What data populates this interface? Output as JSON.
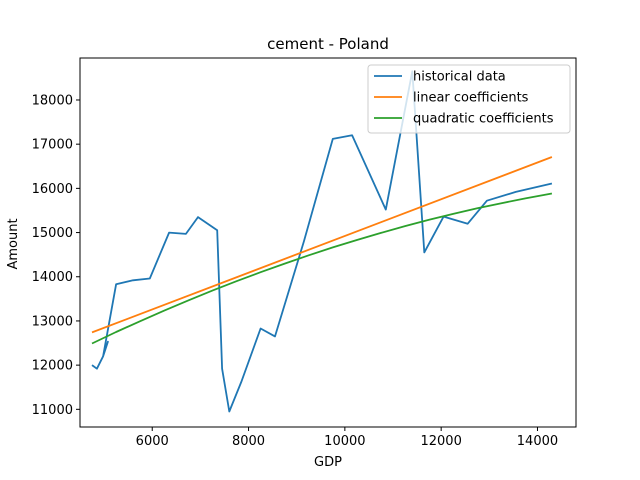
{
  "chart_data": {
    "type": "line",
    "title": "cement - Poland",
    "xlabel": "GDP",
    "ylabel": "Amount",
    "xlim": [
      4500,
      14800
    ],
    "ylim": [
      10600,
      18950
    ],
    "xticks": [
      6000,
      8000,
      10000,
      12000,
      14000
    ],
    "yticks": [
      11000,
      12000,
      13000,
      14000,
      15000,
      16000,
      17000,
      18000
    ],
    "grid": false,
    "legend_position": "top-right",
    "series": [
      {
        "name": "historical data",
        "color": "#1f77b4",
        "x": [
          4750,
          4850,
          4980,
          5080,
          4980,
          5250,
          5600,
          5950,
          6350,
          6700,
          6950,
          7350,
          7450,
          7600,
          7850,
          8250,
          8550,
          9150,
          9750,
          10150,
          10850,
          11400,
          11650,
          12050,
          12550,
          12950,
          13550,
          14300
        ],
        "y": [
          12000,
          11920,
          12200,
          12530,
          12200,
          13830,
          13920,
          13960,
          15000,
          14970,
          15350,
          15050,
          11920,
          10950,
          11620,
          12830,
          12650,
          14800,
          17120,
          17200,
          15520,
          18650,
          14550,
          15360,
          15200,
          15720,
          15920,
          16110
        ]
      },
      {
        "name": "linear coefficients",
        "color": "#ff7f0e",
        "x": [
          4750,
          14300
        ],
        "y": [
          12740,
          16710
        ]
      },
      {
        "name": "quadratic coefficients",
        "color": "#2ca02c",
        "x": [
          4750,
          5250,
          5750,
          6250,
          6750,
          7250,
          7750,
          8250,
          8750,
          9250,
          9750,
          10250,
          10750,
          11250,
          11750,
          12250,
          12750,
          13250,
          13750,
          14300
        ],
        "y": [
          12490,
          12749,
          12995,
          13234,
          13464,
          13686,
          13899,
          14103,
          14298,
          14485,
          14663,
          14832,
          14993,
          15145,
          15288,
          15422,
          15548,
          15665,
          15773,
          15883
        ]
      }
    ]
  }
}
